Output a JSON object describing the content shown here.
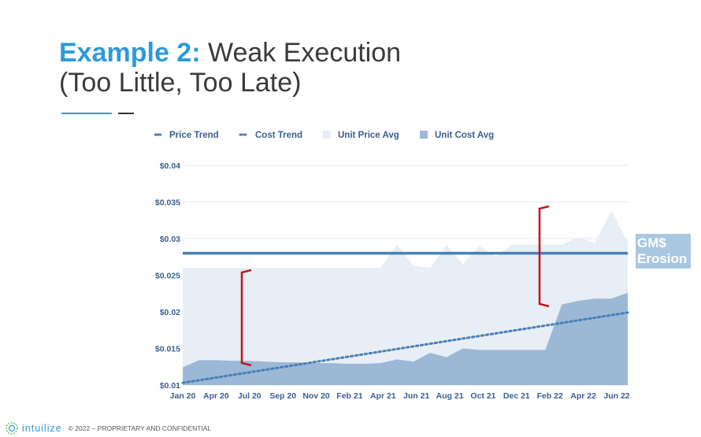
{
  "slide": {
    "title_accent": "Example 2:",
    "title_rest": "Weak Execution",
    "title_line2": "(Too Little, Too Late)",
    "callout": "GM$ Erosion",
    "footer_brand": "intuilize",
    "footer_note": "© 2022 – PROPRIETARY AND CONFIDENTIAL"
  },
  "colors": {
    "accent": "#2e9ad8",
    "price_trend": "#4a7fb5",
    "cost_trend": "#4a7fb5",
    "unit_price_fill": "#e8eef5",
    "unit_cost_fill": "#9bb8d6",
    "bracket": "#c0161e",
    "callout_bg": "#a9c7e1"
  },
  "chart_data": {
    "type": "area",
    "legend": [
      {
        "label": "Price Trend",
        "marker": "line"
      },
      {
        "label": "Cost Trend",
        "marker": "dots"
      },
      {
        "label": "Unit Price Avg",
        "marker": "light-box"
      },
      {
        "label": "Unit Cost Avg",
        "marker": "dark-box"
      }
    ],
    "legend_position": "top",
    "x_ticks": [
      "Jan 20",
      "Apr 20",
      "Jul 20",
      "Sep 20",
      "Nov 20",
      "Feb 21",
      "Apr 21",
      "Jun 21",
      "Aug 21",
      "Oct 21",
      "Dec 21",
      "Feb 22",
      "Apr 22",
      "Jun 22"
    ],
    "y_ticks": [
      "$0.04",
      "$0.035",
      "$0.03",
      "$0.025",
      "$0.02",
      "$0.015",
      "$0.01"
    ],
    "ylim": [
      0.01,
      0.04
    ],
    "xlim": [
      0,
      27
    ],
    "grid": true,
    "series": [
      {
        "name": "Unit Price Avg",
        "x": [
          0,
          1,
          2,
          3,
          4,
          5,
          6,
          7,
          8,
          9,
          10,
          11,
          12,
          13,
          14,
          15,
          16,
          17,
          18,
          19,
          20,
          21,
          22,
          23,
          24,
          25,
          26,
          27
        ],
        "values": [
          0.026,
          0.026,
          0.026,
          0.026,
          0.026,
          0.026,
          0.026,
          0.026,
          0.026,
          0.026,
          0.026,
          0.026,
          0.026,
          0.0292,
          0.0263,
          0.026,
          0.0291,
          0.0265,
          0.029,
          0.0275,
          0.0292,
          0.0292,
          0.0292,
          0.0292,
          0.0302,
          0.0294,
          0.0338,
          0.0295
        ]
      },
      {
        "name": "Unit Cost Avg",
        "x": [
          0,
          1,
          2,
          3,
          4,
          5,
          6,
          7,
          8,
          9,
          10,
          11,
          12,
          13,
          14,
          15,
          16,
          17,
          18,
          19,
          20,
          21,
          22,
          23,
          24,
          25,
          26,
          27
        ],
        "values": [
          0.0124,
          0.0134,
          0.0134,
          0.0133,
          0.0133,
          0.0132,
          0.0131,
          0.0131,
          0.013,
          0.013,
          0.0129,
          0.0129,
          0.013,
          0.0135,
          0.0132,
          0.0144,
          0.0138,
          0.015,
          0.0148,
          0.0148,
          0.0148,
          0.0148,
          0.0148,
          0.021,
          0.0215,
          0.0218,
          0.0218,
          0.0226
        ]
      },
      {
        "name": "Price Trend",
        "x": [
          0,
          27
        ],
        "values": [
          0.028,
          0.028
        ]
      },
      {
        "name": "Cost Trend",
        "x": [
          0,
          27
        ],
        "values": [
          0.0103,
          0.0199
        ]
      }
    ]
  }
}
